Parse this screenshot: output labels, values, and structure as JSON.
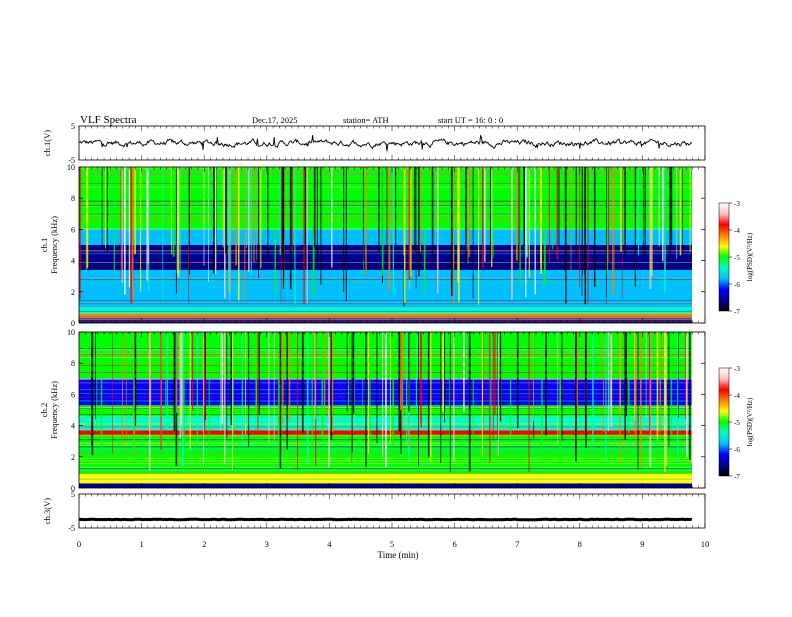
{
  "header": {
    "title": "VLF  Spectra",
    "date": "Dec.17, 2025",
    "station": "station= ATH",
    "start_ut": "start  UT  =    16: 0  : 0"
  },
  "colors": {
    "spectrum_scale": [
      "#000000",
      "#00008b",
      "#0000ff",
      "#00bfff",
      "#00ffbf",
      "#00ff00",
      "#ffff00",
      "#ff8000",
      "#ff0000",
      "#ffc0c0",
      "#ffffff"
    ],
    "trace": "#000000"
  },
  "chart_data": [
    {
      "type": "line",
      "title": "",
      "ylabel": "ch.1(V)",
      "xlabel": "",
      "ylim": [
        -5,
        5
      ],
      "yticks": [
        "5",
        "-5"
      ],
      "xlim": [
        0,
        10
      ],
      "series": [
        {
          "baseline": 0,
          "amplitude": 1.2
        }
      ]
    },
    {
      "type": "heatmap",
      "ylabel": "ch.1\nFrequency  (kHz)",
      "ylim": [
        0,
        10
      ],
      "yticks": [
        "10",
        "8",
        "6",
        "4",
        "2",
        "0"
      ],
      "xlim": [
        0,
        10
      ],
      "colorbar": {
        "label": "log(PSD)(V²/Hz)",
        "range": [
          -7,
          -3
        ],
        "ticks": [
          "-3",
          "-4",
          "-5",
          "-6",
          "-7"
        ]
      },
      "bands_khz": [
        {
          "from": 0.0,
          "to": 0.3,
          "level": -6.8
        },
        {
          "from": 0.3,
          "to": 0.6,
          "level": -4.2
        },
        {
          "from": 0.6,
          "to": 1.0,
          "level": -5.4
        },
        {
          "from": 1.0,
          "to": 2.6,
          "level": -5.7
        },
        {
          "from": 2.6,
          "to": 3.4,
          "level": -5.9
        },
        {
          "from": 3.4,
          "to": 5.0,
          "level": -6.4
        },
        {
          "from": 5.0,
          "to": 6.0,
          "level": -5.8
        },
        {
          "from": 6.0,
          "to": 10.0,
          "level": -4.9
        }
      ]
    },
    {
      "type": "heatmap",
      "ylabel": "ch.2\nFrequency  (kHz)",
      "ylim": [
        0,
        10
      ],
      "yticks": [
        "10",
        "8",
        "6",
        "4",
        "2",
        "0"
      ],
      "xlim": [
        0,
        10
      ],
      "colorbar": {
        "label": "log(PSD)(V²/Hz)",
        "range": [
          -7,
          -3
        ],
        "ticks": [
          "-3",
          "-4",
          "-5",
          "-6",
          "-7"
        ]
      },
      "bands_khz": [
        {
          "from": 0.0,
          "to": 0.3,
          "level": -6.8
        },
        {
          "from": 0.3,
          "to": 0.9,
          "level": -4.4
        },
        {
          "from": 0.9,
          "to": 3.4,
          "level": -5.1
        },
        {
          "from": 3.4,
          "to": 3.7,
          "level": -4.0
        },
        {
          "from": 3.7,
          "to": 4.6,
          "level": -5.6
        },
        {
          "from": 4.6,
          "to": 5.3,
          "level": -5.0
        },
        {
          "from": 5.3,
          "to": 7.0,
          "level": -6.2
        },
        {
          "from": 7.0,
          "to": 10.0,
          "level": -5.2
        }
      ]
    },
    {
      "type": "line",
      "ylabel": "ch.3(V)",
      "xlabel": "Time  (min)",
      "ylim": [
        -5,
        5
      ],
      "yticks": [
        "5",
        "-5"
      ],
      "xlim": [
        0,
        10
      ],
      "xticks": [
        "0",
        "1",
        "2",
        "3",
        "4",
        "5",
        "6",
        "7",
        "8",
        "9",
        "10"
      ],
      "series": [
        {
          "baseline": -2.5,
          "amplitude": 0.1
        }
      ]
    }
  ]
}
